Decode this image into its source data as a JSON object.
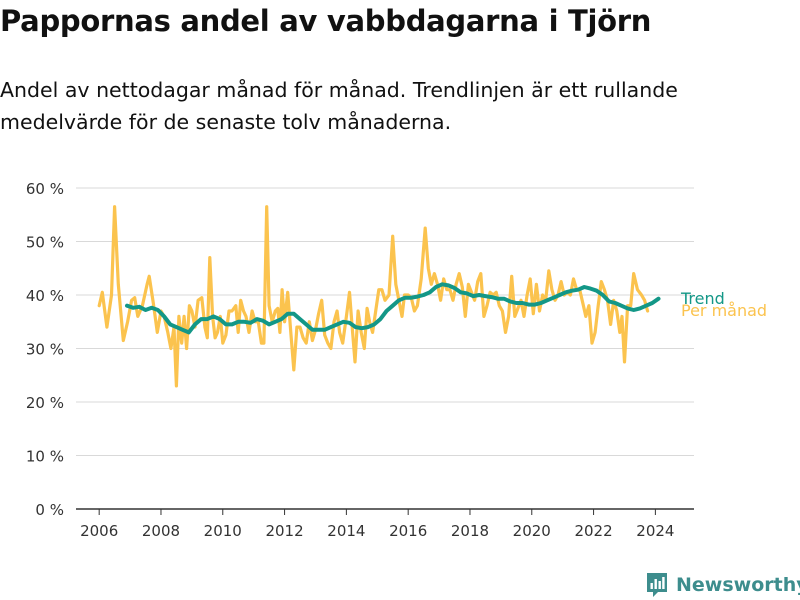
{
  "title": "Pappornas andel av vabbdagarna i Tjörn",
  "subtitle": "Andel av nettodagar månad för månad. Trendlinjen är ett rullande medelvärde för de senaste tolv månaderna.",
  "brand": "Newsworthy",
  "colors": {
    "monthly": "#fbc34e",
    "trend": "#139787",
    "grid": "#d9d9d9",
    "axis": "#333333",
    "brand": "#3d8d8d"
  },
  "chart_data": {
    "type": "line",
    "title": "Pappornas andel av vabbdagarna i Tjörn",
    "xlabel": "",
    "ylabel": "",
    "xlim": [
      2005.25,
      2025.25
    ],
    "ylim": [
      0,
      60
    ],
    "y_ticks": [
      0,
      10,
      20,
      30,
      40,
      50,
      60
    ],
    "y_tick_labels": [
      "0 %",
      "10 %",
      "20 %",
      "30 %",
      "40 %",
      "50 %",
      "60 %"
    ],
    "x_ticks": [
      2006,
      2008,
      2010,
      2012,
      2014,
      2016,
      2018,
      2020,
      2022,
      2024
    ],
    "x_tick_labels": [
      "2006",
      "2008",
      "2010",
      "2012",
      "2014",
      "2016",
      "2018",
      "2020",
      "2022",
      "2024"
    ],
    "grid": true,
    "legend": "right end labels",
    "series": [
      {
        "name": "Per månad",
        "unit": "percent",
        "points": [
          [
            2006.0,
            38
          ],
          [
            2006.1,
            40.5
          ],
          [
            2006.25,
            34
          ],
          [
            2006.4,
            40
          ],
          [
            2006.5,
            56.5
          ],
          [
            2006.62,
            42
          ],
          [
            2006.78,
            31.5
          ],
          [
            2006.92,
            35
          ],
          [
            2007.05,
            39
          ],
          [
            2007.15,
            39.5
          ],
          [
            2007.25,
            36
          ],
          [
            2007.4,
            38
          ],
          [
            2007.55,
            42
          ],
          [
            2007.62,
            43.5
          ],
          [
            2007.75,
            38.5
          ],
          [
            2007.88,
            33
          ],
          [
            2008.0,
            37
          ],
          [
            2008.1,
            36
          ],
          [
            2008.22,
            33
          ],
          [
            2008.32,
            30
          ],
          [
            2008.42,
            34
          ],
          [
            2008.5,
            23
          ],
          [
            2008.58,
            36
          ],
          [
            2008.67,
            31
          ],
          [
            2008.75,
            36
          ],
          [
            2008.83,
            30
          ],
          [
            2008.92,
            38
          ],
          [
            2009.0,
            37
          ],
          [
            2009.1,
            34
          ],
          [
            2009.2,
            39
          ],
          [
            2009.32,
            39.5
          ],
          [
            2009.42,
            34
          ],
          [
            2009.5,
            32
          ],
          [
            2009.58,
            47
          ],
          [
            2009.67,
            36
          ],
          [
            2009.75,
            32
          ],
          [
            2009.83,
            33
          ],
          [
            2009.92,
            36
          ],
          [
            2010.0,
            31
          ],
          [
            2010.1,
            32.5
          ],
          [
            2010.2,
            37
          ],
          [
            2010.3,
            37
          ],
          [
            2010.42,
            38
          ],
          [
            2010.5,
            33
          ],
          [
            2010.58,
            39
          ],
          [
            2010.67,
            37
          ],
          [
            2010.75,
            36
          ],
          [
            2010.85,
            33
          ],
          [
            2010.95,
            37
          ],
          [
            2011.05,
            35
          ],
          [
            2011.15,
            35
          ],
          [
            2011.25,
            31
          ],
          [
            2011.33,
            31
          ],
          [
            2011.42,
            56.5
          ],
          [
            2011.5,
            38
          ],
          [
            2011.6,
            35
          ],
          [
            2011.7,
            37
          ],
          [
            2011.78,
            37.5
          ],
          [
            2011.85,
            33
          ],
          [
            2011.92,
            41
          ],
          [
            2012.0,
            35
          ],
          [
            2012.1,
            40.5
          ],
          [
            2012.2,
            33
          ],
          [
            2012.3,
            26
          ],
          [
            2012.4,
            34
          ],
          [
            2012.5,
            34
          ],
          [
            2012.6,
            32
          ],
          [
            2012.7,
            31
          ],
          [
            2012.8,
            35
          ],
          [
            2012.9,
            31.5
          ],
          [
            2013.0,
            33.5
          ],
          [
            2013.1,
            36.5
          ],
          [
            2013.2,
            39
          ],
          [
            2013.3,
            32.5
          ],
          [
            2013.4,
            31
          ],
          [
            2013.5,
            30
          ],
          [
            2013.6,
            35
          ],
          [
            2013.7,
            37
          ],
          [
            2013.78,
            33
          ],
          [
            2013.88,
            31
          ],
          [
            2014.0,
            36
          ],
          [
            2014.1,
            40.5
          ],
          [
            2014.2,
            33
          ],
          [
            2014.28,
            27.5
          ],
          [
            2014.38,
            37
          ],
          [
            2014.48,
            33
          ],
          [
            2014.58,
            30
          ],
          [
            2014.67,
            37.5
          ],
          [
            2014.75,
            35
          ],
          [
            2014.85,
            33
          ],
          [
            2014.95,
            37
          ],
          [
            2015.05,
            41
          ],
          [
            2015.15,
            41
          ],
          [
            2015.25,
            39
          ],
          [
            2015.38,
            40
          ],
          [
            2015.5,
            51
          ],
          [
            2015.6,
            42
          ],
          [
            2015.7,
            39
          ],
          [
            2015.8,
            36
          ],
          [
            2015.88,
            40
          ],
          [
            2016.0,
            40
          ],
          [
            2016.1,
            39.5
          ],
          [
            2016.2,
            37
          ],
          [
            2016.3,
            38
          ],
          [
            2016.42,
            43
          ],
          [
            2016.55,
            52.5
          ],
          [
            2016.65,
            45
          ],
          [
            2016.75,
            42
          ],
          [
            2016.85,
            44
          ],
          [
            2016.95,
            42
          ],
          [
            2017.05,
            39
          ],
          [
            2017.15,
            43
          ],
          [
            2017.25,
            41
          ],
          [
            2017.35,
            41
          ],
          [
            2017.45,
            39
          ],
          [
            2017.55,
            42
          ],
          [
            2017.65,
            44
          ],
          [
            2017.75,
            41.5
          ],
          [
            2017.85,
            36
          ],
          [
            2017.95,
            42
          ],
          [
            2018.05,
            40.5
          ],
          [
            2018.15,
            39
          ],
          [
            2018.25,
            42.5
          ],
          [
            2018.35,
            44
          ],
          [
            2018.45,
            36
          ],
          [
            2018.55,
            38
          ],
          [
            2018.65,
            40.5
          ],
          [
            2018.75,
            40
          ],
          [
            2018.85,
            40.5
          ],
          [
            2018.95,
            38
          ],
          [
            2019.05,
            37
          ],
          [
            2019.15,
            33
          ],
          [
            2019.25,
            36
          ],
          [
            2019.35,
            43.5
          ],
          [
            2019.45,
            36
          ],
          [
            2019.55,
            37.5
          ],
          [
            2019.65,
            39
          ],
          [
            2019.75,
            36
          ],
          [
            2019.85,
            40
          ],
          [
            2019.95,
            43
          ],
          [
            2020.05,
            36.5
          ],
          [
            2020.15,
            42
          ],
          [
            2020.25,
            37
          ],
          [
            2020.35,
            40
          ],
          [
            2020.45,
            39
          ],
          [
            2020.55,
            44.5
          ],
          [
            2020.65,
            41
          ],
          [
            2020.75,
            39
          ],
          [
            2020.85,
            40
          ],
          [
            2020.95,
            42.5
          ],
          [
            2021.05,
            40
          ],
          [
            2021.15,
            40.5
          ],
          [
            2021.25,
            40
          ],
          [
            2021.35,
            43
          ],
          [
            2021.45,
            41
          ],
          [
            2021.55,
            41
          ],
          [
            2021.65,
            38.5
          ],
          [
            2021.75,
            36
          ],
          [
            2021.85,
            38
          ],
          [
            2021.95,
            31
          ],
          [
            2022.05,
            33
          ],
          [
            2022.15,
            38
          ],
          [
            2022.25,
            42.5
          ],
          [
            2022.35,
            41
          ],
          [
            2022.45,
            39
          ],
          [
            2022.55,
            34.5
          ],
          [
            2022.65,
            39
          ],
          [
            2022.75,
            37
          ],
          [
            2022.85,
            33
          ],
          [
            2022.92,
            36
          ],
          [
            2023.0,
            27.5
          ],
          [
            2023.1,
            38
          ],
          [
            2023.2,
            38
          ],
          [
            2023.3,
            44
          ],
          [
            2023.42,
            41
          ],
          [
            2023.55,
            40
          ],
          [
            2023.65,
            39
          ],
          [
            2023.75,
            37
          ]
        ]
      },
      {
        "name": "Trend",
        "unit": "percent",
        "points": [
          [
            2006.9,
            38
          ],
          [
            2007.1,
            37.6
          ],
          [
            2007.3,
            37.8
          ],
          [
            2007.5,
            37.2
          ],
          [
            2007.7,
            37.6
          ],
          [
            2007.9,
            37.2
          ],
          [
            2008.1,
            36
          ],
          [
            2008.3,
            34.5
          ],
          [
            2008.5,
            34
          ],
          [
            2008.7,
            33.5
          ],
          [
            2008.9,
            33
          ],
          [
            2009.1,
            34.5
          ],
          [
            2009.3,
            35.5
          ],
          [
            2009.5,
            35.5
          ],
          [
            2009.7,
            36
          ],
          [
            2009.9,
            35.5
          ],
          [
            2010.1,
            34.5
          ],
          [
            2010.3,
            34.5
          ],
          [
            2010.5,
            35
          ],
          [
            2010.7,
            35
          ],
          [
            2010.9,
            34.8
          ],
          [
            2011.1,
            35.5
          ],
          [
            2011.3,
            35.2
          ],
          [
            2011.5,
            34.5
          ],
          [
            2011.7,
            35
          ],
          [
            2011.9,
            35.5
          ],
          [
            2012.1,
            36.5
          ],
          [
            2012.3,
            36.5
          ],
          [
            2012.5,
            35.5
          ],
          [
            2012.7,
            34.5
          ],
          [
            2012.9,
            33.5
          ],
          [
            2013.1,
            33.5
          ],
          [
            2013.3,
            33.5
          ],
          [
            2013.5,
            34
          ],
          [
            2013.7,
            34.5
          ],
          [
            2013.9,
            35
          ],
          [
            2014.1,
            34.8
          ],
          [
            2014.3,
            34
          ],
          [
            2014.5,
            33.8
          ],
          [
            2014.7,
            34
          ],
          [
            2014.9,
            34.5
          ],
          [
            2015.1,
            35.5
          ],
          [
            2015.3,
            37
          ],
          [
            2015.5,
            38
          ],
          [
            2015.7,
            39
          ],
          [
            2015.9,
            39.5
          ],
          [
            2016.1,
            39.5
          ],
          [
            2016.3,
            39.7
          ],
          [
            2016.5,
            40
          ],
          [
            2016.7,
            40.5
          ],
          [
            2016.9,
            41.5
          ],
          [
            2017.1,
            42
          ],
          [
            2017.3,
            41.8
          ],
          [
            2017.5,
            41.3
          ],
          [
            2017.7,
            40.5
          ],
          [
            2017.9,
            40.3
          ],
          [
            2018.1,
            39.8
          ],
          [
            2018.3,
            40
          ],
          [
            2018.5,
            39.8
          ],
          [
            2018.7,
            39.6
          ],
          [
            2018.9,
            39.3
          ],
          [
            2019.1,
            39.3
          ],
          [
            2019.3,
            38.8
          ],
          [
            2019.5,
            38.5
          ],
          [
            2019.7,
            38.5
          ],
          [
            2019.9,
            38.2
          ],
          [
            2020.1,
            38.2
          ],
          [
            2020.3,
            38.5
          ],
          [
            2020.5,
            39
          ],
          [
            2020.7,
            39.5
          ],
          [
            2020.9,
            40
          ],
          [
            2021.1,
            40.5
          ],
          [
            2021.3,
            40.8
          ],
          [
            2021.5,
            41
          ],
          [
            2021.7,
            41.5
          ],
          [
            2021.9,
            41.2
          ],
          [
            2022.1,
            40.8
          ],
          [
            2022.3,
            40
          ],
          [
            2022.5,
            38.8
          ],
          [
            2022.7,
            38.5
          ],
          [
            2022.9,
            38
          ],
          [
            2023.1,
            37.5
          ],
          [
            2023.3,
            37.2
          ],
          [
            2023.5,
            37.5
          ],
          [
            2023.7,
            38
          ],
          [
            2023.9,
            38.5
          ],
          [
            2024.1,
            39.3
          ]
        ]
      }
    ]
  }
}
